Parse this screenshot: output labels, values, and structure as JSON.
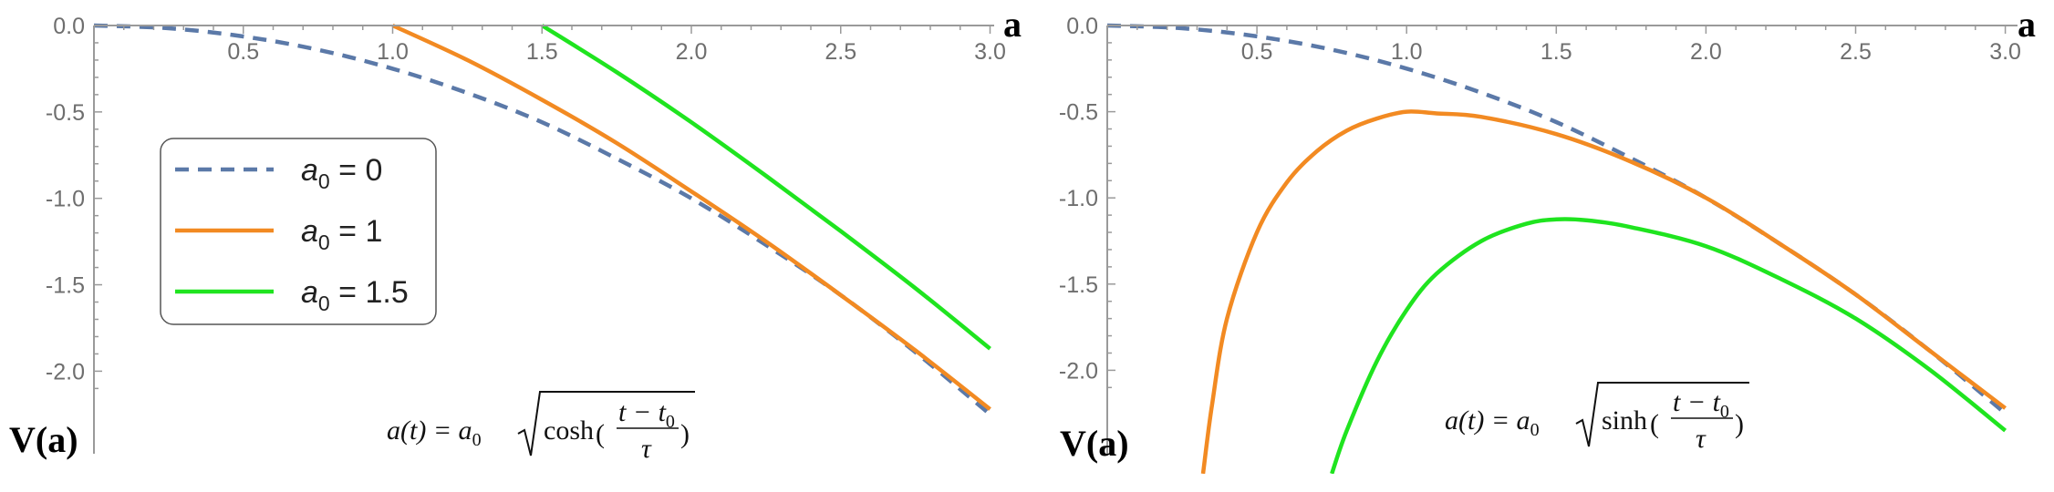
{
  "colors": {
    "axis": "#9a9a9a",
    "tick_text": "#6e6e6e",
    "blue": "#5b79a8",
    "orange": "#f28a22",
    "green": "#1fe41f"
  },
  "legend": {
    "items": [
      {
        "sym": "a",
        "sub": "0",
        "rest": " = 0",
        "color": "#5b79a8",
        "dash": true
      },
      {
        "sym": "a",
        "sub": "0",
        "rest": " = 1",
        "color": "#f28a22",
        "dash": false
      },
      {
        "sym": "a",
        "sub": "0",
        "rest": " = 1.5",
        "color": "#1fe41f",
        "dash": false
      }
    ]
  },
  "chart_data": [
    {
      "type": "line",
      "xlabel": "a",
      "ylabel": "V(a)",
      "xlim": [
        0,
        3.0
      ],
      "ylim": [
        -2.1,
        0.0
      ],
      "x_ticks": [
        "0.5",
        "1.0",
        "1.5",
        "2.0",
        "2.5",
        "3.0"
      ],
      "y_ticks": [
        "0.0",
        "-0.5",
        "-1.0",
        "-1.5",
        "-2.0"
      ],
      "annotation": {
        "lhs": "a(t) = a",
        "lhs_sub": "0",
        "func": "cosh",
        "num": "t − t",
        "num_sub": "0",
        "den": "τ"
      },
      "legend_position": "center-left",
      "series": [
        {
          "name": "a0 = 0",
          "color": "#5b79a8",
          "style": "dashed",
          "x": [
            0,
            0.25,
            0.5,
            0.75,
            1.0,
            1.25,
            1.5,
            1.75,
            2.0,
            2.25,
            2.5,
            2.75,
            3.0
          ],
          "y": [
            0.0,
            -0.016,
            -0.063,
            -0.14,
            -0.25,
            -0.39,
            -0.56,
            -0.77,
            -1.0,
            -1.27,
            -1.56,
            -1.89,
            -2.25
          ]
        },
        {
          "name": "a0 = 1",
          "color": "#f28a22",
          "style": "solid",
          "x": [
            1.0,
            1.25,
            1.5,
            1.75,
            2.0,
            2.25,
            2.5,
            2.75,
            3.0
          ],
          "y": [
            0.0,
            -0.2,
            -0.43,
            -0.68,
            -0.96,
            -1.25,
            -1.56,
            -1.88,
            -2.22
          ]
        },
        {
          "name": "a0 = 1.5",
          "color": "#1fe41f",
          "style": "solid",
          "x": [
            1.5,
            1.75,
            2.0,
            2.25,
            2.5,
            2.75,
            3.0
          ],
          "y": [
            0.0,
            -0.27,
            -0.56,
            -0.87,
            -1.19,
            -1.52,
            -1.87
          ]
        }
      ]
    },
    {
      "type": "line",
      "xlabel": "a",
      "ylabel": "V(a)",
      "xlim": [
        0,
        3.0
      ],
      "ylim": [
        -2.1,
        0.0
      ],
      "x_ticks": [
        "0.5",
        "1.0",
        "1.5",
        "2.0",
        "2.5",
        "3.0"
      ],
      "y_ticks": [
        "0.0",
        "-0.5",
        "-1.0",
        "-1.5",
        "-2.0"
      ],
      "annotation": {
        "lhs": "a(t) = a",
        "lhs_sub": "0",
        "func": "sinh",
        "num": "t − t",
        "num_sub": "0",
        "den": "τ"
      },
      "series": [
        {
          "name": "a0 = 0",
          "color": "#5b79a8",
          "style": "dashed",
          "x": [
            0,
            0.25,
            0.5,
            0.75,
            1.0,
            1.25,
            1.5,
            1.75,
            2.0,
            2.25,
            2.5,
            2.75,
            3.0
          ],
          "y": [
            0.0,
            -0.016,
            -0.063,
            -0.14,
            -0.25,
            -0.39,
            -0.56,
            -0.77,
            -1.0,
            -1.27,
            -1.56,
            -1.89,
            -2.25
          ]
        },
        {
          "name": "a0 = 1",
          "color": "#f28a22",
          "style": "solid",
          "x": [
            0.32,
            0.35,
            0.4,
            0.5,
            0.6,
            0.7,
            0.8,
            0.9,
            1.0,
            1.1,
            1.25,
            1.5,
            1.75,
            2.0,
            2.25,
            2.5,
            2.75,
            3.0
          ],
          "y": [
            -2.6,
            -2.2,
            -1.7,
            -1.2,
            -0.91,
            -0.73,
            -0.61,
            -0.54,
            -0.5,
            -0.51,
            -0.53,
            -0.63,
            -0.79,
            -1.0,
            -1.27,
            -1.56,
            -1.89,
            -2.22
          ]
        },
        {
          "name": "a0 = 1.5",
          "color": "#1fe41f",
          "style": "solid",
          "x": [
            0.75,
            0.8,
            0.9,
            1.0,
            1.1,
            1.25,
            1.4,
            1.5,
            1.6,
            1.75,
            2.0,
            2.25,
            2.5,
            2.75,
            3.0
          ],
          "y": [
            -2.6,
            -2.35,
            -1.95,
            -1.65,
            -1.44,
            -1.25,
            -1.15,
            -1.125,
            -1.13,
            -1.17,
            -1.28,
            -1.47,
            -1.7,
            -2.0,
            -2.35
          ]
        }
      ]
    }
  ]
}
